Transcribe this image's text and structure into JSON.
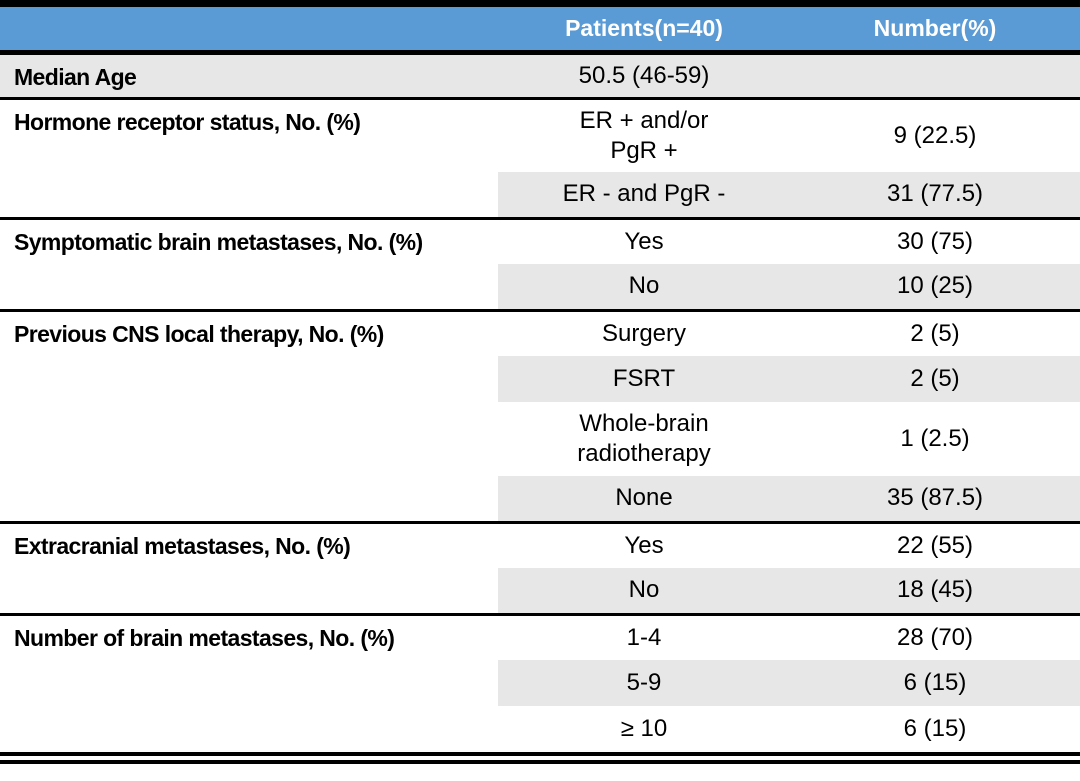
{
  "title": "Patient characteristics table",
  "colors": {
    "header_bg": "#5B9BD5",
    "header_text": "#FFFFFF",
    "row_shade": "#E8E7E7",
    "border": "#000000"
  },
  "header": {
    "patients": "Patients(n=40)",
    "number": "Number(%)"
  },
  "groups": [
    {
      "label": "Median Age",
      "full_shade": true,
      "rows": [
        {
          "value_lines": [
            "50.5 (46-59)"
          ],
          "number": "",
          "shaded": true
        }
      ]
    },
    {
      "label": "Hormone receptor status, No. (%)",
      "full_shade": false,
      "rows": [
        {
          "value_lines": [
            "ER + and/or",
            "PgR +"
          ],
          "number": "9 (22.5)",
          "shaded": false
        },
        {
          "value_lines": [
            "ER - and PgR -"
          ],
          "number": "31 (77.5)",
          "shaded": true
        }
      ]
    },
    {
      "label": "Symptomatic brain metastases, No. (%)",
      "full_shade": false,
      "rows": [
        {
          "value_lines": [
            "Yes"
          ],
          "number": "30 (75)",
          "shaded": false
        },
        {
          "value_lines": [
            "No"
          ],
          "number": "10 (25)",
          "shaded": true
        }
      ]
    },
    {
      "label": "Previous CNS local therapy, No. (%)",
      "full_shade": false,
      "rows": [
        {
          "value_lines": [
            "Surgery"
          ],
          "number": "2 (5)",
          "shaded": false
        },
        {
          "value_lines": [
            "FSRT"
          ],
          "number": "2 (5)",
          "shaded": true
        },
        {
          "value_lines": [
            "Whole-brain",
            "radiotherapy"
          ],
          "number": "1 (2.5)",
          "shaded": false
        },
        {
          "value_lines": [
            "None"
          ],
          "number": "35 (87.5)",
          "shaded": true
        }
      ]
    },
    {
      "label": "Extracranial metastases, No. (%)",
      "full_shade": false,
      "rows": [
        {
          "value_lines": [
            "Yes"
          ],
          "number": "22 (55)",
          "shaded": false
        },
        {
          "value_lines": [
            "No"
          ],
          "number": "18 (45)",
          "shaded": true
        }
      ]
    },
    {
      "label": "Number of brain metastases, No. (%)",
      "full_shade": false,
      "rows": [
        {
          "value_lines": [
            "1-4"
          ],
          "number": "28 (70)",
          "shaded": false
        },
        {
          "value_lines": [
            "5-9"
          ],
          "number": "6 (15)",
          "shaded": true
        },
        {
          "value_lines": [
            "≥ 10"
          ],
          "number": "6 (15)",
          "shaded": false
        }
      ]
    }
  ]
}
